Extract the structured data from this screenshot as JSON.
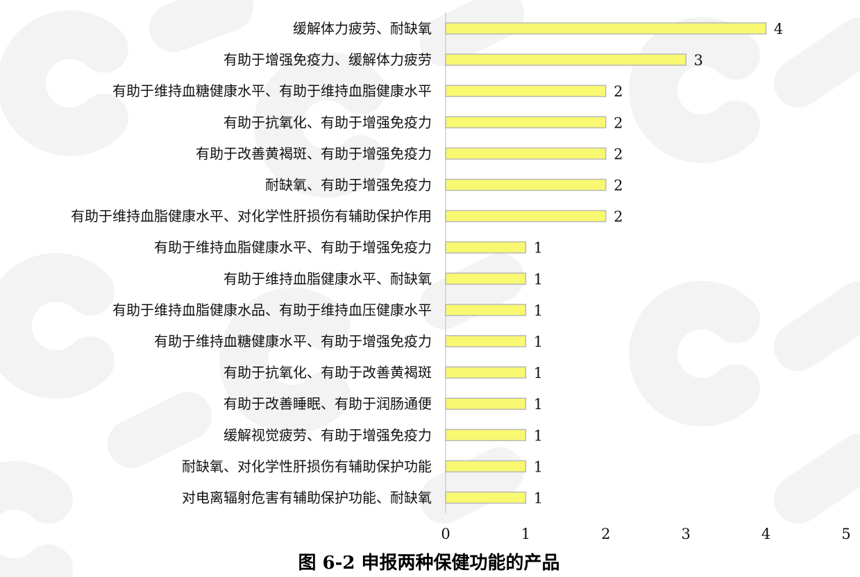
{
  "chart_data": {
    "type": "bar",
    "orientation": "horizontal",
    "title": "",
    "caption": "图 6-2 申报两种保健功能的产品",
    "xlabel": "",
    "ylabel": "",
    "xlim": [
      0,
      5
    ],
    "xticks": [
      "0",
      "1",
      "2",
      "3",
      "4",
      "5"
    ],
    "grid": false,
    "legend": "none",
    "bar_color": "#f9f871",
    "bar_border_color": "#b8b8b8",
    "categories": [
      "缓解体力疲劳、耐缺氧",
      "有助于增强免疫力、缓解体力疲劳",
      "有助于维持血糖健康水平、有助于维持血脂健康水平",
      "有助于抗氧化、有助于增强免疫力",
      "有助于改善黄褐斑、有助于增强免疫力",
      "耐缺氧、有助于增强免疫力",
      "有助于维持血脂健康水平、对化学性肝损伤有辅助保护作用",
      "有助于维持血脂健康水平、有助于增强免疫力",
      "有助于维持血脂健康水平、耐缺氧",
      "有助于维持血脂健康水品、有助于维持血压健康水平",
      "有助于维持血糖健康水平、有助于增强免疫力",
      "有助于抗氧化、有助于改善黄褐斑",
      "有助于改善睡眠、有助于润肠通便",
      "缓解视觉疲劳、有助于增强免疫力",
      "耐缺氧、对化学性肝损伤有辅助保护功能",
      "对电离辐射危害有辅助保护功能、耐缺氧"
    ],
    "values": [
      4,
      3,
      2,
      2,
      2,
      2,
      2,
      1,
      1,
      1,
      1,
      1,
      1,
      1,
      1,
      1
    ],
    "data_labels": [
      "4",
      "3",
      "2",
      "2",
      "2",
      "2",
      "2",
      "1",
      "1",
      "1",
      "1",
      "1",
      "1",
      "1",
      "1",
      "1"
    ]
  },
  "watermark": {
    "text": "CIRS",
    "color": "#e9e9e9"
  }
}
